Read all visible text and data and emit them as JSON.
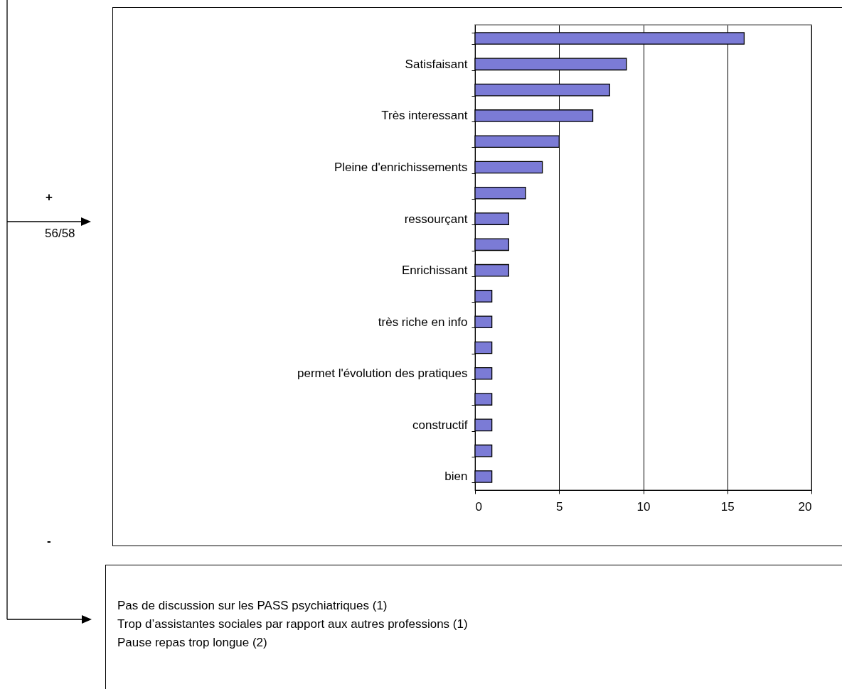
{
  "chart_data": {
    "type": "bar",
    "orientation": "horizontal",
    "categories": [
      null,
      "Satisfaisant",
      null,
      "Très interessant",
      null,
      "Pleine d'enrichissements",
      null,
      "ressourçant",
      null,
      "Enrichissant",
      null,
      "très riche en info",
      null,
      "permet l'évolution des pratiques",
      null,
      "constructif",
      null,
      "bien"
    ],
    "values": [
      16,
      9,
      8,
      7,
      5,
      4,
      3,
      2,
      2,
      2,
      1,
      1,
      1,
      1,
      1,
      1,
      1,
      1
    ],
    "color": "#7b7bd6",
    "xlim": [
      0,
      20
    ],
    "xticks": [
      0,
      5,
      10,
      15,
      20
    ],
    "grid": "x",
    "annotations": [
      "+",
      "56/58",
      "-",
      "Pas de discussion sur les PASS psychiatriques (1)",
      "Trop d’assistantes sociales par rapport aux autres professions (1)",
      "Pause repas trop longue (2)"
    ]
  }
}
